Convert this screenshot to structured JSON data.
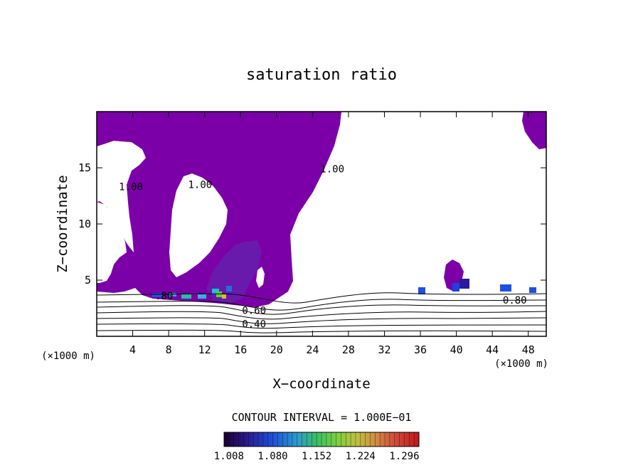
{
  "chart_data": {
    "type": "heatmap",
    "title": "saturation ratio",
    "xlabel": "X−coordinate",
    "ylabel": "Z−coordinate",
    "x_unit_label": "(×1000 m)",
    "y_unit_label": "(×1000 m)",
    "xlim": [
      0,
      50
    ],
    "ylim": [
      0,
      20
    ],
    "x_ticks": [
      "4",
      "8",
      "12",
      "16",
      "20",
      "24",
      "28",
      "32",
      "36",
      "40",
      "44",
      "48"
    ],
    "y_ticks": [
      "5",
      "10",
      "15"
    ],
    "x_tick_values": [
      4,
      8,
      12,
      16,
      20,
      24,
      28,
      32,
      36,
      40,
      44,
      48
    ],
    "y_tick_values": [
      5,
      10,
      15
    ],
    "contour_interval_text": "CONTOUR INTERVAL = 1.000E−01",
    "contour_labels": [
      {
        "text": "1.00",
        "x": 3.8,
        "z": 13
      },
      {
        "text": "1.00",
        "x": 11.5,
        "z": 13.2
      },
      {
        "text": "1.00",
        "x": 26.2,
        "z": 14.6
      },
      {
        "text": "0.80",
        "x": 46.5,
        "z": 2.9
      },
      {
        "text": "0.60",
        "x": 17.5,
        "z": 2.0
      },
      {
        "text": "0.40",
        "x": 17.5,
        "z": 0.8
      },
      {
        "text": ".80",
        "x": 7.5,
        "z": 3.3
      }
    ],
    "colorbar": {
      "ticks": [
        "1.008",
        "1.080",
        "1.152",
        "1.224",
        "1.296"
      ],
      "range": [
        1.0,
        1.32
      ]
    },
    "supersaturated_fill_color": "#7b00a8",
    "grid": false
  }
}
